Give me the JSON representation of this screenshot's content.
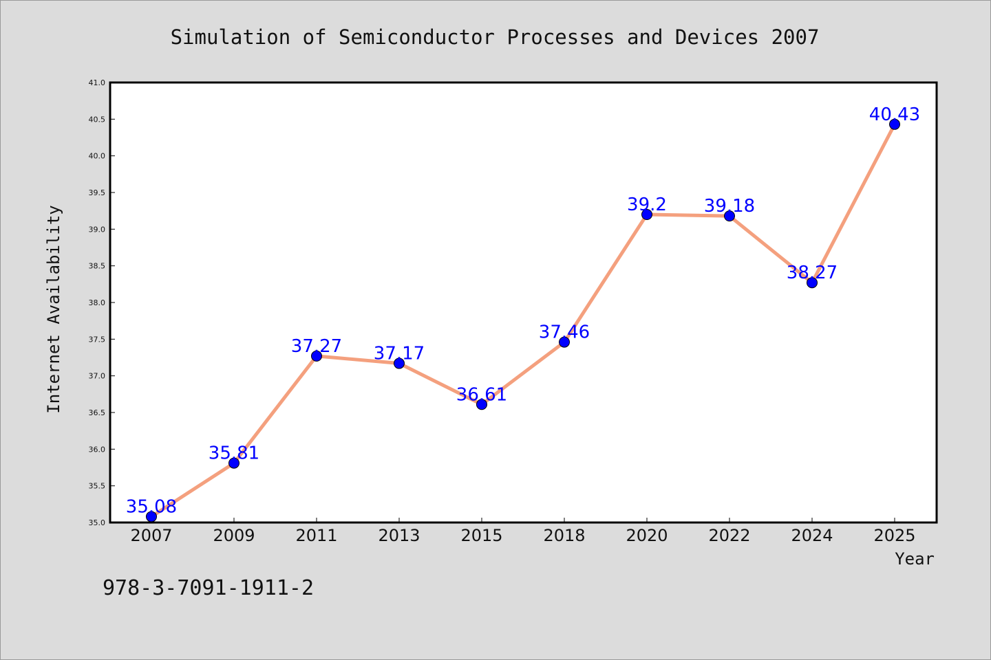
{
  "chart_data": {
    "type": "line",
    "title": "Simulation of Semiconductor Processes and Devices 2007",
    "xlabel": "Year",
    "ylabel": "Internet Availability",
    "categories": [
      "2007",
      "2009",
      "2011",
      "2013",
      "2015",
      "2018",
      "2020",
      "2022",
      "2024",
      "2025"
    ],
    "series": [
      {
        "values": [
          35.08,
          35.81,
          37.27,
          37.17,
          36.61,
          37.46,
          39.2,
          39.18,
          38.27,
          40.43
        ],
        "labels": [
          "35.08",
          "35.81",
          "37.27",
          "37.17",
          "36.61",
          "37.46",
          "39.2",
          "39.18",
          "38.27",
          "40.43"
        ]
      }
    ],
    "ylim": [
      35.0,
      41.0
    ],
    "yticks": [
      "35.0",
      "35.5",
      "36.0",
      "36.5",
      "37.0",
      "37.5",
      "38.0",
      "38.5",
      "39.0",
      "39.5",
      "40.0",
      "40.5",
      "41.0"
    ],
    "grid": false,
    "legend": "none",
    "line_color": "#f4a07e",
    "marker_color": "#0000ff",
    "label_color": "#0000ff",
    "background_color": "#dcdcdc",
    "plot_background": "#ffffff"
  },
  "footer": {
    "isbn": "978-3-7091-1911-2"
  }
}
